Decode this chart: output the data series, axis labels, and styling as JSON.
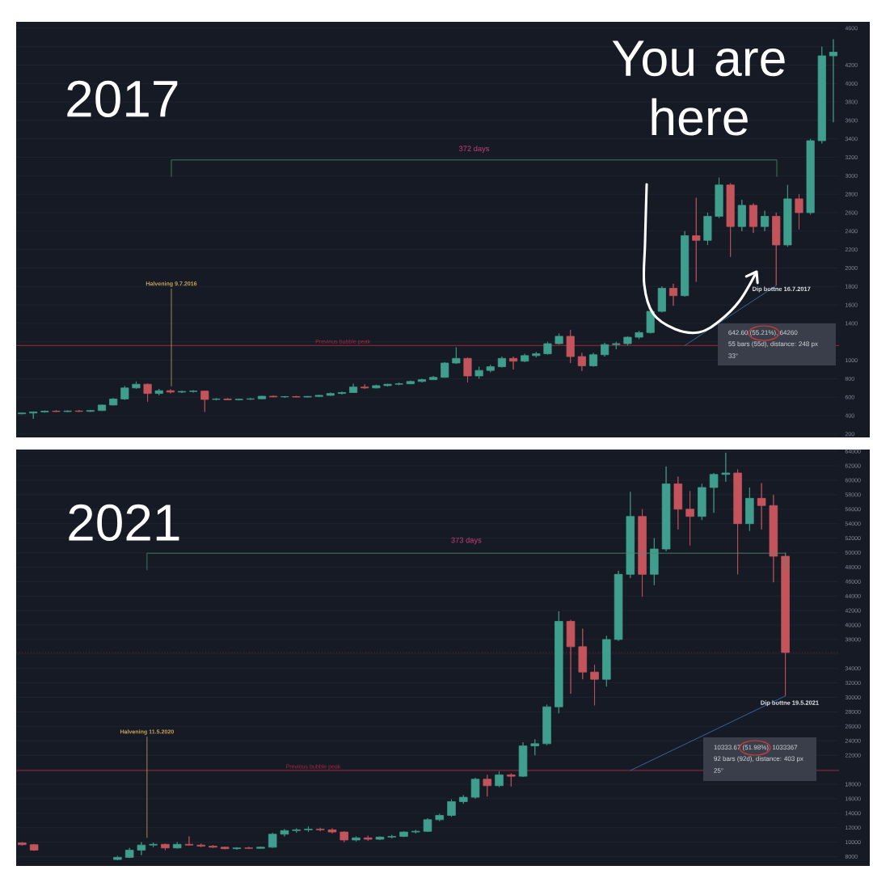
{
  "chart_data": [
    {
      "type": "candlestick",
      "title": "2017",
      "categories": [
        null,
        null,
        null,
        null,
        null,
        null,
        null,
        null,
        null,
        null,
        null,
        null,
        null,
        null,
        null,
        null,
        null,
        null,
        null,
        null,
        null,
        null,
        null,
        null,
        null,
        null,
        null,
        null,
        null,
        null,
        null,
        null,
        null,
        null,
        null,
        null,
        null,
        null,
        null,
        null,
        null,
        null,
        null,
        null,
        null,
        null,
        null,
        null,
        null,
        null,
        null,
        null,
        null,
        null,
        null,
        null,
        null,
        null,
        null,
        null,
        null,
        null,
        null,
        null,
        null,
        null,
        null,
        null,
        null,
        null,
        null,
        null
      ],
      "ohlc": [
        [
          420,
          432,
          415,
          428
        ],
        [
          428,
          445,
          365,
          440
        ],
        [
          440,
          455,
          432,
          448
        ],
        [
          448,
          460,
          440,
          444
        ],
        [
          444,
          456,
          436,
          450
        ],
        [
          450,
          460,
          440,
          446
        ],
        [
          446,
          462,
          440,
          455
        ],
        [
          455,
          520,
          450,
          515
        ],
        [
          515,
          590,
          510,
          580
        ],
        [
          580,
          720,
          570,
          700
        ],
        [
          700,
          770,
          690,
          740
        ],
        [
          740,
          750,
          550,
          640
        ],
        [
          640,
          690,
          620,
          670
        ],
        [
          670,
          685,
          640,
          655
        ],
        [
          655,
          670,
          645,
          662
        ],
        [
          662,
          675,
          650,
          666
        ],
        [
          666,
          672,
          440,
          575
        ],
        [
          575,
          590,
          565,
          580
        ],
        [
          580,
          590,
          568,
          572
        ],
        [
          572,
          585,
          565,
          578
        ],
        [
          578,
          590,
          570,
          582
        ],
        [
          582,
          615,
          578,
          610
        ],
        [
          610,
          618,
          598,
          603
        ],
        [
          603,
          612,
          592,
          606
        ],
        [
          606,
          615,
          598,
          601
        ],
        [
          601,
          612,
          595,
          608
        ],
        [
          608,
          625,
          600,
          620
        ],
        [
          620,
          650,
          615,
          640
        ],
        [
          640,
          660,
          630,
          650
        ],
        [
          650,
          745,
          645,
          710
        ],
        [
          710,
          740,
          690,
          700
        ],
        [
          700,
          735,
          695,
          725
        ],
        [
          725,
          745,
          715,
          740
        ],
        [
          740,
          760,
          730,
          745
        ],
        [
          745,
          780,
          740,
          770
        ],
        [
          770,
          800,
          760,
          790
        ],
        [
          790,
          830,
          785,
          815
        ],
        [
          815,
          980,
          810,
          970
        ],
        [
          970,
          1140,
          960,
          1020
        ],
        [
          1020,
          1030,
          760,
          830
        ],
        [
          830,
          930,
          800,
          890
        ],
        [
          890,
          950,
          870,
          930
        ],
        [
          930,
          1040,
          920,
          1020
        ],
        [
          1020,
          1040,
          900,
          990
        ],
        [
          990,
          1070,
          980,
          1050
        ],
        [
          1050,
          1090,
          1030,
          1070
        ],
        [
          1070,
          1200,
          1060,
          1180
        ],
        [
          1180,
          1290,
          1170,
          1260
        ],
        [
          1260,
          1330,
          970,
          1040
        ],
        [
          1040,
          1080,
          885,
          940
        ],
        [
          940,
          1080,
          930,
          1060
        ],
        [
          1060,
          1190,
          1040,
          1170
        ],
        [
          1170,
          1200,
          1120,
          1180
        ],
        [
          1180,
          1260,
          1160,
          1250
        ],
        [
          1250,
          1320,
          1230,
          1300
        ],
        [
          1300,
          1550,
          1290,
          1530
        ],
        [
          1530,
          1800,
          1520,
          1780
        ],
        [
          1780,
          1830,
          1590,
          1700
        ],
        [
          1700,
          2400,
          1690,
          2350
        ],
        [
          2350,
          2760,
          1850,
          2300
        ],
        [
          2300,
          2600,
          2250,
          2560
        ],
        [
          2560,
          2980,
          2540,
          2900
        ],
        [
          2900,
          2920,
          2120,
          2450
        ],
        [
          2450,
          2740,
          2400,
          2680
        ],
        [
          2680,
          2700,
          2380,
          2450
        ],
        [
          2450,
          2620,
          2400,
          2560
        ],
        [
          2560,
          2600,
          1810,
          2250
        ],
        [
          2250,
          2900,
          2230,
          2750
        ],
        [
          2750,
          2800,
          2420,
          2600
        ],
        [
          2600,
          3400,
          2580,
          3380
        ],
        [
          3380,
          4400,
          3350,
          4300
        ],
        [
          4300,
          4480,
          3580,
          4340
        ]
      ],
      "colors": [
        "#3f9e8d",
        "#3f9e8d",
        "#3f9e8d",
        "#c4545c",
        "#3f9e8d",
        "#c4545c",
        "#3f9e8d",
        "#3f9e8d",
        "#3f9e8d",
        "#3f9e8d",
        "#3f9e8d",
        "#c4545c",
        "#3f9e8d",
        "#c4545c",
        "#3f9e8d",
        "#3f9e8d",
        "#c4545c",
        "#3f9e8d",
        "#c4545c",
        "#3f9e8d",
        "#3f9e8d",
        "#3f9e8d",
        "#c4545c",
        "#3f9e8d",
        "#c4545c",
        "#3f9e8d",
        "#3f9e8d",
        "#3f9e8d",
        "#3f9e8d",
        "#3f9e8d",
        "#c4545c",
        "#3f9e8d",
        "#3f9e8d",
        "#3f9e8d",
        "#3f9e8d",
        "#3f9e8d",
        "#3f9e8d",
        "#3f9e8d",
        "#3f9e8d",
        "#c4545c",
        "#3f9e8d",
        "#3f9e8d",
        "#3f9e8d",
        "#c4545c",
        "#3f9e8d",
        "#3f9e8d",
        "#3f9e8d",
        "#3f9e8d",
        "#c4545c",
        "#c4545c",
        "#3f9e8d",
        "#3f9e8d",
        "#3f9e8d",
        "#3f9e8d",
        "#3f9e8d",
        "#3f9e8d",
        "#3f9e8d",
        "#c4545c",
        "#3f9e8d",
        "#c4545c",
        "#3f9e8d",
        "#3f9e8d",
        "#c4545c",
        "#3f9e8d",
        "#c4545c",
        "#3f9e8d",
        "#c4545c",
        "#3f9e8d",
        "#c4545c",
        "#3f9e8d",
        "#3f9e8d",
        "#3f9e8d"
      ],
      "ylim": [
        190,
        4660
      ],
      "yticks": [
        200,
        400,
        600,
        800,
        1000,
        {
          "value": 1200,
          "label": null
        },
        1400,
        1600,
        1800,
        2000,
        2200,
        2400,
        2600,
        2800,
        3000,
        3200,
        3400,
        3600,
        3800,
        4000,
        4200,
        {
          "value": 4400,
          "label": null
        },
        4600
      ],
      "grid": "y",
      "tick_labels": "y",
      "ref_lines": [
        {
          "axis": "y",
          "value": 1160,
          "label": "Previous bubble peak",
          "color": "#a8283f"
        }
      ],
      "series": [
        {
          "type": "line",
          "color": "#3b78b5",
          "values": [
            null,
            null,
            null,
            null,
            null,
            null,
            null,
            null,
            null,
            null,
            null,
            null,
            null,
            null,
            null,
            null,
            null,
            null,
            null,
            null,
            null,
            null,
            null,
            null,
            null,
            null,
            null,
            null,
            null,
            null,
            null,
            null,
            null,
            null,
            null,
            null,
            null,
            null,
            null,
            null,
            null,
            null,
            null,
            null,
            null,
            null,
            null,
            null,
            null,
            null,
            null,
            null,
            null,
            null,
            null,
            null,
            null,
            null,
            1160,
            null,
            null,
            null,
            null,
            null,
            null,
            null,
            1810,
            null,
            null,
            null,
            null,
            null
          ]
        }
      ],
      "annotations": [
        "You are here",
        "Dip bottne 16.7.2017",
        "642.60 (55.21%), 64260",
        "55 bars (55d), distance: 248 px",
        "33°",
        "Halvening 9.7.2016",
        "372 days"
      ]
    },
    {
      "type": "candlestick",
      "title": "2021",
      "categories": [
        null,
        null,
        null,
        null,
        null,
        null,
        null,
        null,
        null,
        null,
        null,
        null,
        null,
        null,
        null,
        null,
        null,
        null,
        null,
        null,
        null,
        null,
        null,
        null,
        null,
        null,
        null,
        null,
        null,
        null,
        null,
        null,
        null,
        null,
        null,
        null,
        null,
        null,
        null,
        null,
        null,
        null,
        null,
        null,
        null,
        null,
        null,
        null,
        null,
        null,
        null,
        null,
        null,
        null,
        null,
        null,
        null,
        null,
        null,
        null,
        null,
        null,
        null,
        null,
        null,
        null,
        null,
        null,
        null
      ],
      "ohlc": [
        [
          9900,
          10000,
          9500,
          9650
        ],
        [
          9650,
          9750,
          8800,
          8900
        ],
        null,
        null,
        null,
        null,
        null,
        null,
        [
          7600,
          8100,
          7500,
          7900
        ],
        [
          7900,
          9200,
          7800,
          8900
        ],
        [
          8900,
          10000,
          8200,
          9600
        ],
        [
          9600,
          9950,
          9300,
          9700
        ],
        [
          9700,
          9800,
          8900,
          9200
        ],
        [
          9200,
          10000,
          9100,
          9700
        ],
        [
          9700,
          10800,
          9500,
          9600
        ],
        [
          9600,
          9800,
          9300,
          9450
        ],
        [
          9450,
          9600,
          9200,
          9300
        ],
        [
          9300,
          9400,
          9000,
          9100
        ],
        [
          9100,
          9300,
          8950,
          9200
        ],
        [
          9200,
          9350,
          9050,
          9150
        ],
        [
          9150,
          9400,
          9100,
          9300
        ],
        [
          9300,
          11300,
          9200,
          11100
        ],
        [
          11100,
          11800,
          10800,
          11600
        ],
        [
          11600,
          11900,
          11300,
          11700
        ],
        [
          11700,
          12200,
          11400,
          11800
        ],
        [
          11800,
          12000,
          11500,
          11700
        ],
        [
          11700,
          11900,
          11200,
          11400
        ],
        [
          11400,
          11500,
          10000,
          10300
        ],
        [
          10300,
          10800,
          10100,
          10600
        ],
        [
          10600,
          10900,
          10200,
          10400
        ],
        [
          10400,
          10800,
          10300,
          10700
        ],
        [
          10700,
          11000,
          10500,
          10800
        ],
        [
          10800,
          11500,
          10700,
          11400
        ],
        [
          11400,
          11700,
          11200,
          11500
        ],
        [
          11500,
          13300,
          11400,
          13100
        ],
        [
          13100,
          13900,
          12900,
          13700
        ],
        [
          13700,
          15900,
          13500,
          15600
        ],
        [
          15600,
          16500,
          15300,
          16200
        ],
        [
          16200,
          18900,
          16000,
          18700
        ],
        [
          18700,
          19300,
          16300,
          17800
        ],
        [
          17800,
          19800,
          17600,
          19300
        ],
        [
          19300,
          19500,
          17700,
          19100
        ],
        [
          19100,
          23800,
          19000,
          23300
        ],
        [
          23300,
          24200,
          22000,
          23600
        ],
        [
          23600,
          29000,
          23400,
          28700
        ],
        [
          28700,
          41900,
          27800,
          40500
        ],
        [
          40500,
          40700,
          30500,
          37000
        ],
        [
          37000,
          39500,
          32500,
          33500
        ],
        [
          33500,
          34500,
          28900,
          32500
        ],
        [
          32500,
          38500,
          31500,
          38000
        ],
        [
          38000,
          47500,
          37800,
          47000
        ],
        [
          47000,
          58400,
          46500,
          55000
        ],
        [
          55000,
          56000,
          43900,
          47000
        ],
        [
          47000,
          52000,
          45500,
          50500
        ],
        [
          50500,
          61900,
          50200,
          59500
        ],
        [
          59500,
          60500,
          53200,
          56000
        ],
        [
          56000,
          58500,
          51000,
          55000
        ],
        [
          55000,
          59500,
          54500,
          59000
        ],
        [
          59000,
          61000,
          55500,
          60800
        ],
        [
          60800,
          63800,
          59800,
          61000
        ],
        [
          61000,
          61500,
          47000,
          54000
        ],
        [
          54000,
          59000,
          53000,
          57500
        ],
        [
          57500,
          59600,
          53200,
          56500
        ],
        [
          56500,
          58000,
          45900,
          49500
        ],
        [
          49500,
          50000,
          30200,
          36200
        ],
        null,
        null,
        null,
        null
      ],
      "colors": [
        "#c4545c",
        "#c4545c",
        null,
        null,
        null,
        null,
        null,
        null,
        "#3f9e8d",
        "#3f9e8d",
        "#3f9e8d",
        "#3f9e8d",
        "#c4545c",
        "#3f9e8d",
        "#c4545c",
        "#c4545c",
        "#c4545c",
        "#c4545c",
        "#3f9e8d",
        "#c4545c",
        "#3f9e8d",
        "#3f9e8d",
        "#3f9e8d",
        "#3f9e8d",
        "#3f9e8d",
        "#c4545c",
        "#c4545c",
        "#c4545c",
        "#3f9e8d",
        "#c4545c",
        "#3f9e8d",
        "#3f9e8d",
        "#3f9e8d",
        "#3f9e8d",
        "#3f9e8d",
        "#3f9e8d",
        "#3f9e8d",
        "#3f9e8d",
        "#3f9e8d",
        "#c4545c",
        "#3f9e8d",
        "#c4545c",
        "#3f9e8d",
        "#3f9e8d",
        "#3f9e8d",
        "#3f9e8d",
        "#c4545c",
        "#c4545c",
        "#c4545c",
        "#3f9e8d",
        "#3f9e8d",
        "#3f9e8d",
        "#c4545c",
        "#3f9e8d",
        "#3f9e8d",
        "#c4545c",
        "#c4545c",
        "#3f9e8d",
        "#3f9e8d",
        "#3f9e8d",
        "#c4545c",
        "#3f9e8d",
        "#c4545c",
        "#c4545c",
        "#c4545c",
        null,
        null,
        null,
        null
      ],
      "ylim": [
        7050,
        64130
      ],
      "yticks": [
        8000,
        10000,
        12000,
        14000,
        16000,
        18000,
        {
          "value": 20000,
          "label": null
        },
        22000,
        24000,
        26000,
        28000,
        30000,
        32000,
        34000,
        {
          "value": 36000,
          "label": null
        },
        38000,
        40000,
        42000,
        44000,
        46000,
        48000,
        50000,
        52000,
        54000,
        56000,
        58000,
        60000,
        62000,
        64000
      ],
      "grid": "y",
      "tick_labels": "y",
      "ref_lines": [
        {
          "axis": "y",
          "value": 19900,
          "label": "Previous bubble peak",
          "color": "#a8283f"
        },
        {
          "axis": "y",
          "value": 36200,
          "color": "#8a2a38",
          "line_style": "dotted"
        }
      ],
      "series": [
        {
          "type": "line",
          "color": "#3b78b5",
          "values": [
            null,
            null,
            null,
            null,
            null,
            null,
            null,
            null,
            null,
            null,
            null,
            null,
            null,
            null,
            null,
            null,
            null,
            null,
            null,
            null,
            null,
            null,
            null,
            null,
            null,
            null,
            null,
            null,
            null,
            null,
            null,
            null,
            null,
            null,
            null,
            null,
            null,
            null,
            null,
            null,
            null,
            null,
            null,
            null,
            null,
            null,
            null,
            null,
            null,
            null,
            null,
            19900,
            null,
            null,
            null,
            null,
            null,
            null,
            null,
            null,
            null,
            null,
            null,
            null,
            30200,
            null,
            null,
            null,
            null
          ]
        }
      ],
      "annotations": [
        "Dip bottne 19.5.2021",
        "10333.67 (51.98%), 1033367",
        "92 bars (92d), distance: 403 px",
        "25°",
        "Halvening 11.5.2020",
        "373 days"
      ]
    }
  ]
}
